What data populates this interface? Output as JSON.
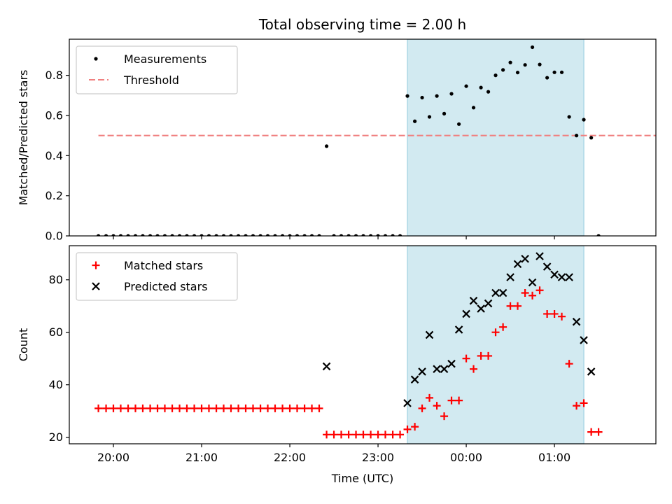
{
  "title": "Total observing time = 2.00 h",
  "chart_data": [
    {
      "type": "scatter",
      "ylabel": "Matched/Predicted stars",
      "xlim_hours": [
        19.5,
        26.15
      ],
      "ylim": [
        0,
        0.98
      ],
      "yticks": [
        0.0,
        0.2,
        0.4,
        0.6,
        0.8
      ],
      "ytick_labels": [
        "0.0",
        "0.2",
        "0.4",
        "0.6",
        "0.8"
      ],
      "xticks": [
        20,
        21,
        22,
        23,
        24,
        25
      ],
      "xtick_labels": [
        "20:00",
        "21:00",
        "22:00",
        "23:00",
        "00:00",
        "01:00"
      ],
      "shaded_interval_hours": [
        23.333,
        25.333
      ],
      "shaded_color": "#add8e6",
      "threshold": {
        "value": 0.5,
        "x_range_hours": [
          19.83,
          26.45
        ],
        "color": "#f08080"
      },
      "legend": {
        "placement": "upper-left",
        "entries": [
          "Measurements",
          "Threshold"
        ]
      },
      "series": [
        {
          "name": "Measurements",
          "marker": "dot",
          "color": "#000000",
          "x": [
            19.83,
            19.917,
            20.0,
            20.083,
            20.167,
            20.25,
            20.333,
            20.417,
            20.5,
            20.583,
            20.667,
            20.75,
            20.833,
            20.917,
            21.0,
            21.083,
            21.167,
            21.25,
            21.333,
            21.417,
            21.5,
            21.583,
            21.667,
            21.75,
            21.833,
            21.917,
            22.0,
            22.083,
            22.167,
            22.25,
            22.333,
            22.417,
            22.5,
            22.583,
            22.667,
            22.75,
            22.833,
            22.917,
            23.0,
            23.083,
            23.167,
            23.25,
            23.333,
            23.417,
            23.5,
            23.583,
            23.667,
            23.75,
            23.833,
            23.917,
            24.0,
            24.083,
            24.167,
            24.25,
            24.333,
            24.417,
            24.5,
            24.583,
            24.667,
            24.75,
            24.833,
            24.917,
            25.0,
            25.083,
            25.167,
            25.25,
            25.333,
            25.417,
            25.5
          ],
          "y": [
            0,
            0,
            0,
            0,
            0,
            0,
            0,
            0,
            0,
            0,
            0,
            0,
            0,
            0,
            0,
            0,
            0,
            0,
            0,
            0,
            0,
            0,
            0,
            0,
            0,
            0,
            0,
            0,
            0,
            0,
            0,
            0.447,
            0,
            0,
            0,
            0,
            0,
            0,
            0,
            0,
            0,
            0,
            0.697,
            0.571,
            0.689,
            0.593,
            0.697,
            0.609,
            0.708,
            0.557,
            0.746,
            0.639,
            0.739,
            0.718,
            0.8,
            0.827,
            0.864,
            0.814,
            0.852,
            0.94,
            0.854,
            0.788,
            0.815,
            0.815,
            0.593,
            0.5,
            0.579,
            0.489,
            0
          ]
        }
      ]
    },
    {
      "type": "scatter",
      "ylabel": "Count",
      "xlabel": "Time (UTC)",
      "xlim_hours": [
        19.5,
        26.15
      ],
      "ylim": [
        17.5,
        93
      ],
      "yticks": [
        20,
        40,
        60,
        80
      ],
      "ytick_labels": [
        "20",
        "40",
        "60",
        "80"
      ],
      "xticks": [
        20,
        21,
        22,
        23,
        24,
        25
      ],
      "xtick_labels": [
        "20:00",
        "21:00",
        "22:00",
        "23:00",
        "00:00",
        "01:00"
      ],
      "shaded_interval_hours": [
        23.333,
        25.333
      ],
      "shaded_color": "#add8e6",
      "legend": {
        "placement": "upper-left",
        "entries": [
          "Matched stars",
          "Predicted stars"
        ]
      },
      "series": [
        {
          "name": "Matched stars",
          "marker": "plus",
          "color": "#ff0000",
          "x": [
            19.83,
            19.917,
            20.0,
            20.083,
            20.167,
            20.25,
            20.333,
            20.417,
            20.5,
            20.583,
            20.667,
            20.75,
            20.833,
            20.917,
            21.0,
            21.083,
            21.167,
            21.25,
            21.333,
            21.417,
            21.5,
            21.583,
            21.667,
            21.75,
            21.833,
            21.917,
            22.0,
            22.083,
            22.167,
            22.25,
            22.333,
            22.417,
            22.5,
            22.583,
            22.667,
            22.75,
            22.833,
            22.917,
            23.0,
            23.083,
            23.167,
            23.25,
            23.333,
            23.417,
            23.5,
            23.583,
            23.667,
            23.75,
            23.833,
            23.917,
            24.0,
            24.083,
            24.167,
            24.25,
            24.333,
            24.417,
            24.5,
            24.583,
            24.667,
            24.75,
            24.833,
            24.917,
            25.0,
            25.083,
            25.167,
            25.25,
            25.333,
            25.417,
            25.5
          ],
          "y": [
            31,
            31,
            31,
            31,
            31,
            31,
            31,
            31,
            31,
            31,
            31,
            31,
            31,
            31,
            31,
            31,
            31,
            31,
            31,
            31,
            31,
            31,
            31,
            31,
            31,
            31,
            31,
            31,
            31,
            31,
            31,
            21,
            21,
            21,
            21,
            21,
            21,
            21,
            21,
            21,
            21,
            21,
            23,
            24,
            31,
            35,
            32,
            28,
            34,
            34,
            50,
            46,
            51,
            51,
            60,
            62,
            70,
            70,
            75,
            74,
            76,
            67,
            67,
            66,
            48,
            32,
            33,
            22,
            22
          ]
        },
        {
          "name": "Predicted stars",
          "marker": "x",
          "color": "#000000",
          "x": [
            22.417,
            23.333,
            23.417,
            23.5,
            23.583,
            23.667,
            23.75,
            23.833,
            23.917,
            24.0,
            24.083,
            24.167,
            24.25,
            24.333,
            24.417,
            24.5,
            24.583,
            24.667,
            24.75,
            24.833,
            24.917,
            25.0,
            25.083,
            25.167,
            25.25,
            25.333,
            25.417
          ],
          "y": [
            47,
            33,
            42,
            45,
            59,
            46,
            46,
            48,
            61,
            67,
            72,
            69,
            71,
            75,
            75,
            81,
            86,
            88,
            79,
            89,
            85,
            82,
            81,
            81,
            64,
            57,
            45
          ]
        }
      ]
    }
  ]
}
